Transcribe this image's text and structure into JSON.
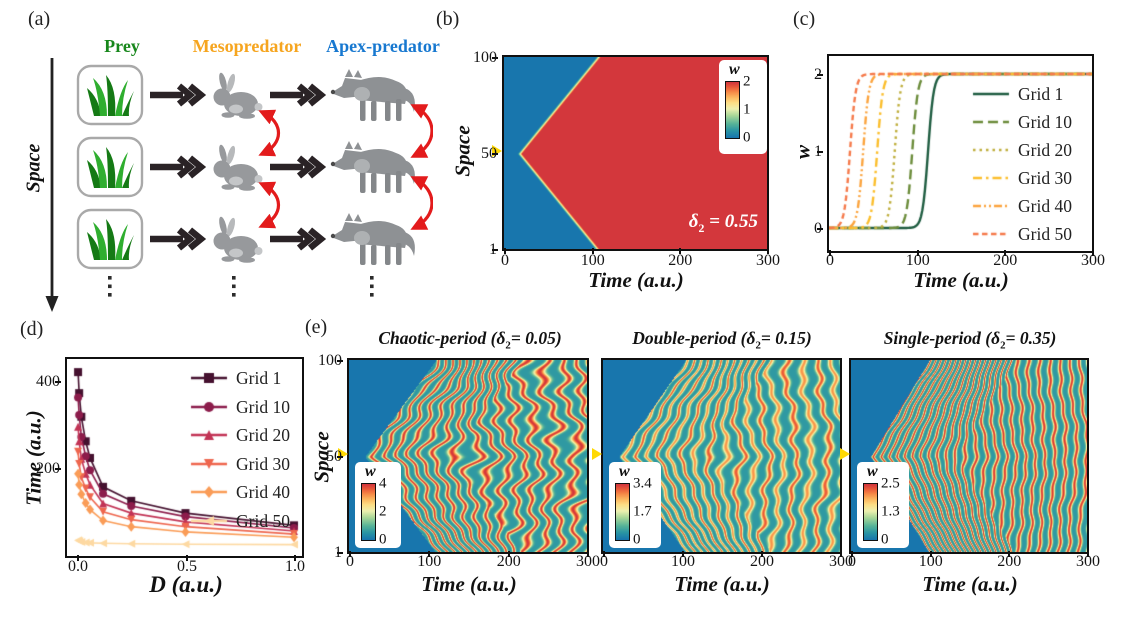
{
  "panel_a": {
    "label": "(a)",
    "space_label": "Space",
    "columns": [
      {
        "name": "Prey",
        "color": "#17871b",
        "icon": "grass-icon"
      },
      {
        "name": "Mesopredator",
        "color": "#f6a51f",
        "icon": "rabbit-icon"
      },
      {
        "name": "Apex-predator",
        "color": "#1778d0",
        "icon": "wolf-icon"
      }
    ],
    "rows": 3,
    "ellipsis": "vertical-dots",
    "food_arrow_color": "#2a2326",
    "exchange_arrow_color": "#e31b1c"
  },
  "panel_b": {
    "label": "(b)",
    "xlabel": "Time (a.u.)",
    "ylabel": "Space",
    "xticks": [
      "0",
      "100",
      "200",
      "300"
    ],
    "yticks": [
      "100",
      "50",
      "1"
    ],
    "anno_pre": "δ",
    "anno_sub": "2",
    "anno_post": "= 0.55",
    "colorbar": {
      "title": "w",
      "ticks": [
        "2",
        "1",
        "0"
      ]
    }
  },
  "panel_c": {
    "label": "(c)",
    "xlabel": "Time (a.u.)",
    "ylabel": "w",
    "xticks": [
      "0",
      "100",
      "200",
      "300"
    ],
    "yticks": [
      "2",
      "1",
      "0"
    ]
  },
  "panel_d": {
    "label": "(d)",
    "xlabel": "D (a.u.)",
    "ylabel": "Time (a.u.)",
    "xticks": [
      "0.0",
      "0.5",
      "1.0"
    ],
    "yticks": [
      "400",
      "200"
    ]
  },
  "panel_e": {
    "label": "(e)",
    "ylabel": "Space",
    "yticks": [
      "100",
      "50",
      "1"
    ],
    "plots": [
      {
        "id": "e1",
        "title_pre": "Chaotic-period (δ",
        "title_sub": "2",
        "title_post": "= 0.05)",
        "xlabel": "Time (a.u.)",
        "xticks": [
          "0",
          "100",
          "200",
          "300"
        ],
        "colorbar": {
          "title": "w",
          "ticks": [
            "4",
            "2",
            "0"
          ]
        }
      },
      {
        "id": "e2",
        "title_pre": "Double-period (δ",
        "title_sub": "2",
        "title_post": "= 0.15)",
        "xlabel": "Time (a.u.)",
        "xticks": [
          "0",
          "100",
          "200",
          "300"
        ],
        "colorbar": {
          "title": "w",
          "ticks": [
            "3.4",
            "1.7",
            "0"
          ]
        }
      },
      {
        "id": "e3",
        "title_pre": "Single-period (δ",
        "title_sub": "2",
        "title_post": "= 0.35)",
        "xlabel": "Time (a.u.)",
        "xticks": [
          "0",
          "100",
          "200",
          "300"
        ],
        "colorbar": {
          "title": "w",
          "ticks": [
            "2.5",
            "1.3",
            "0"
          ]
        }
      }
    ]
  },
  "chart_data": [
    {
      "id": "b",
      "type": "heatmap",
      "pattern": "advancing-front",
      "title": "",
      "xlabel": "Time (a.u.)",
      "ylabel": "Space",
      "x_range": [
        0,
        300
      ],
      "y_range": [
        1,
        100
      ],
      "front_origin": {
        "time": 15,
        "space": 50
      },
      "t0": 15,
      "k": 1.8,
      "vmin": 0,
      "vmax": 2,
      "delta2": 0.55,
      "colormap": "blue-cream-red",
      "marker_space": 50
    },
    {
      "id": "c",
      "type": "line",
      "xlabel": "Time (a.u.)",
      "ylabel": "w",
      "x_range": [
        0,
        300
      ],
      "y_range": [
        0,
        2
      ],
      "plateau": 2,
      "steepness": 3.2,
      "legend_position": "right",
      "series": [
        {
          "name": "Grid 1",
          "color": "#1e5c40",
          "dash": [],
          "t_mid": 113
        },
        {
          "name": "Grid 10",
          "color": "#6b8c3a",
          "dash": [
            10,
            5
          ],
          "t_mid": 95
        },
        {
          "name": "Grid 20",
          "color": "#bfae3c",
          "dash": [
            2.5,
            4
          ],
          "t_mid": 75
        },
        {
          "name": "Grid 30",
          "color": "#fbbe2c",
          "dash": [
            9,
            4,
            2.5,
            4
          ],
          "t_mid": 55
        },
        {
          "name": "Grid 40",
          "color": "#fba43e",
          "dash": [
            8,
            3,
            2,
            3,
            2,
            3
          ],
          "t_mid": 39
        },
        {
          "name": "Grid 50",
          "color": "#f5794a",
          "dash": [
            5.5,
            3.5
          ],
          "t_mid": 24
        }
      ]
    },
    {
      "id": "d",
      "type": "scatter-line",
      "xlabel": "D (a.u.)",
      "ylabel": "Time (a.u.)",
      "x_range": [
        0,
        1.0
      ],
      "y_range": [
        0,
        450
      ],
      "x": [
        0.005,
        0.01,
        0.02,
        0.04,
        0.06,
        0.12,
        0.25,
        0.5,
        1.0
      ],
      "legend_position": "top-right",
      "series": [
        {
          "name": "Grid 1",
          "color": "#45112f",
          "marker": "square",
          "values": [
            420,
            372,
            318,
            262,
            224,
            158,
            126,
            98,
            70
          ]
        },
        {
          "name": "Grid 10",
          "color": "#8c1c4b",
          "marker": "circle",
          "values": [
            362,
            322,
            272,
            228,
            196,
            142,
            114,
            90,
            64
          ]
        },
        {
          "name": "Grid 20",
          "color": "#c23355",
          "marker": "tri-up",
          "values": [
            295,
            262,
            222,
            188,
            163,
            120,
            98,
            78,
            57
          ]
        },
        {
          "name": "Grid 30",
          "color": "#ee664e",
          "marker": "tri-down",
          "values": [
            238,
            210,
            180,
            154,
            134,
            101,
            83,
            67,
            50
          ]
        },
        {
          "name": "Grid 40",
          "color": "#fa9c57",
          "marker": "diamond",
          "values": [
            188,
            163,
            141,
            121,
            106,
            81,
            67,
            55,
            43
          ]
        },
        {
          "name": "Grid 50",
          "color": "#fdd9a2",
          "marker": "tri-left",
          "values": [
            36,
            34,
            32,
            31,
            30,
            29,
            28,
            27,
            26
          ]
        }
      ]
    },
    {
      "id": "e1",
      "type": "heatmap",
      "pattern": "chevron-waves",
      "title": "Chaotic-period",
      "delta2": 0.05,
      "x_range": [
        0,
        300
      ],
      "y_range": [
        1,
        100
      ],
      "t0": 20,
      "k": 1.8,
      "P": 22,
      "m": 0.55,
      "chaos": 1.0,
      "pair": 0,
      "vmin": 0,
      "vmax": 4,
      "marker_space": 50
    },
    {
      "id": "e2",
      "type": "heatmap",
      "pattern": "chevron-waves",
      "title": "Double-period",
      "delta2": 0.15,
      "x_range": [
        0,
        300
      ],
      "y_range": [
        1,
        100
      ],
      "t0": 20,
      "k": 1.7,
      "P": 19,
      "m": 0.4,
      "chaos": 0.55,
      "pair": 0.7,
      "vmin": 0,
      "vmax": 3.4,
      "marker_space": 50
    },
    {
      "id": "e3",
      "type": "heatmap",
      "pattern": "chevron-waves",
      "title": "Single-period",
      "delta2": 0.35,
      "x_range": [
        0,
        300
      ],
      "y_range": [
        1,
        100
      ],
      "t0": 25,
      "k": 1.5,
      "P": 13,
      "m": 0.22,
      "chaos": 0.25,
      "pair": 0,
      "vmin": 0,
      "vmax": 2.5,
      "marker_space": 50
    }
  ],
  "colors": {
    "heat_low": "#1b78ad",
    "heat_mid": "#f0f0ae",
    "heat_high": "#d23b40",
    "space_marker": "#ffd903",
    "animal_gray": "#8e9194",
    "rabbit_gray": "#97999c",
    "grass_dark": "#157a15",
    "grass_light": "#2fae2f"
  }
}
